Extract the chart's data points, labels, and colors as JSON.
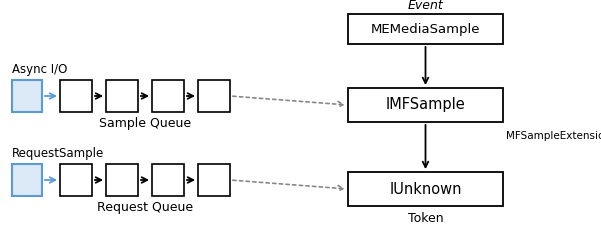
{
  "bg_color": "#ffffff",
  "box_color": "#000000",
  "box_face": "#ffffff",
  "blue_box_face": "#dce9f7",
  "blue_box_edge": "#5b9bd5",
  "arrow_color": "#000000",
  "blue_arrow_color": "#5b9bd5",
  "dotted_arrow_color": "#888888",
  "event_label": "Event",
  "memedia_label": "MEMediaSample",
  "imfsample_label": "IMFSample",
  "iunknown_label": "IUnknown",
  "mfext_label": "MFSampleExtension_Token",
  "token_label": "Token",
  "async_label": "Async I/O",
  "sample_queue_label": "Sample Queue",
  "request_sample_label": "RequestSample",
  "request_queue_label": "Request Queue",
  "fig_width": 6.01,
  "fig_height": 2.34,
  "dpi": 100
}
